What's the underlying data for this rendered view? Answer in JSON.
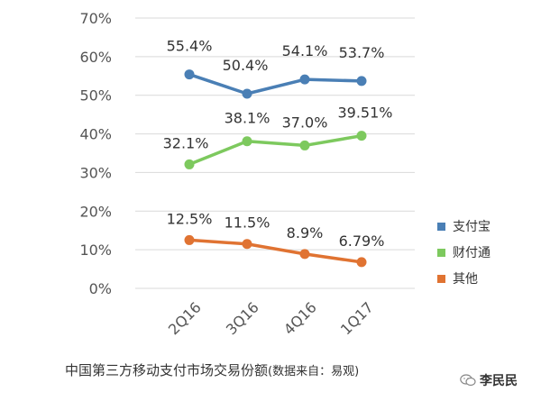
{
  "chart_data": {
    "type": "line",
    "categories": [
      "2Q16",
      "3Q16",
      "4Q16",
      "1Q17"
    ],
    "series": [
      {
        "name": "支付宝",
        "color": "#4a7fb5",
        "values": [
          55.4,
          50.4,
          54.1,
          53.7
        ],
        "labels": [
          "55.4%",
          "50.4%",
          "54.1%",
          "53.7%"
        ]
      },
      {
        "name": "财付通",
        "color": "#7dc95e",
        "values": [
          32.1,
          38.1,
          37.0,
          39.51
        ],
        "labels": [
          "32.1%",
          "38.1%",
          "37.0%",
          "39.51%"
        ]
      },
      {
        "name": "其他",
        "color": "#e07332",
        "values": [
          12.5,
          11.5,
          8.9,
          6.79
        ],
        "labels": [
          "12.5%",
          "11.5%",
          "8.9%",
          "6.79%"
        ]
      }
    ],
    "ylim": [
      0,
      70
    ],
    "yticks": [
      "0%",
      "10%",
      "20%",
      "30%",
      "40%",
      "50%",
      "60%",
      "70%"
    ],
    "grid": true,
    "legend": "right"
  },
  "caption": {
    "title": "中国第三方移动支付市场交易份额",
    "source": "(数据来自：易观)"
  },
  "brand": {
    "name": "李民民",
    "icon": "wechat-icon"
  }
}
